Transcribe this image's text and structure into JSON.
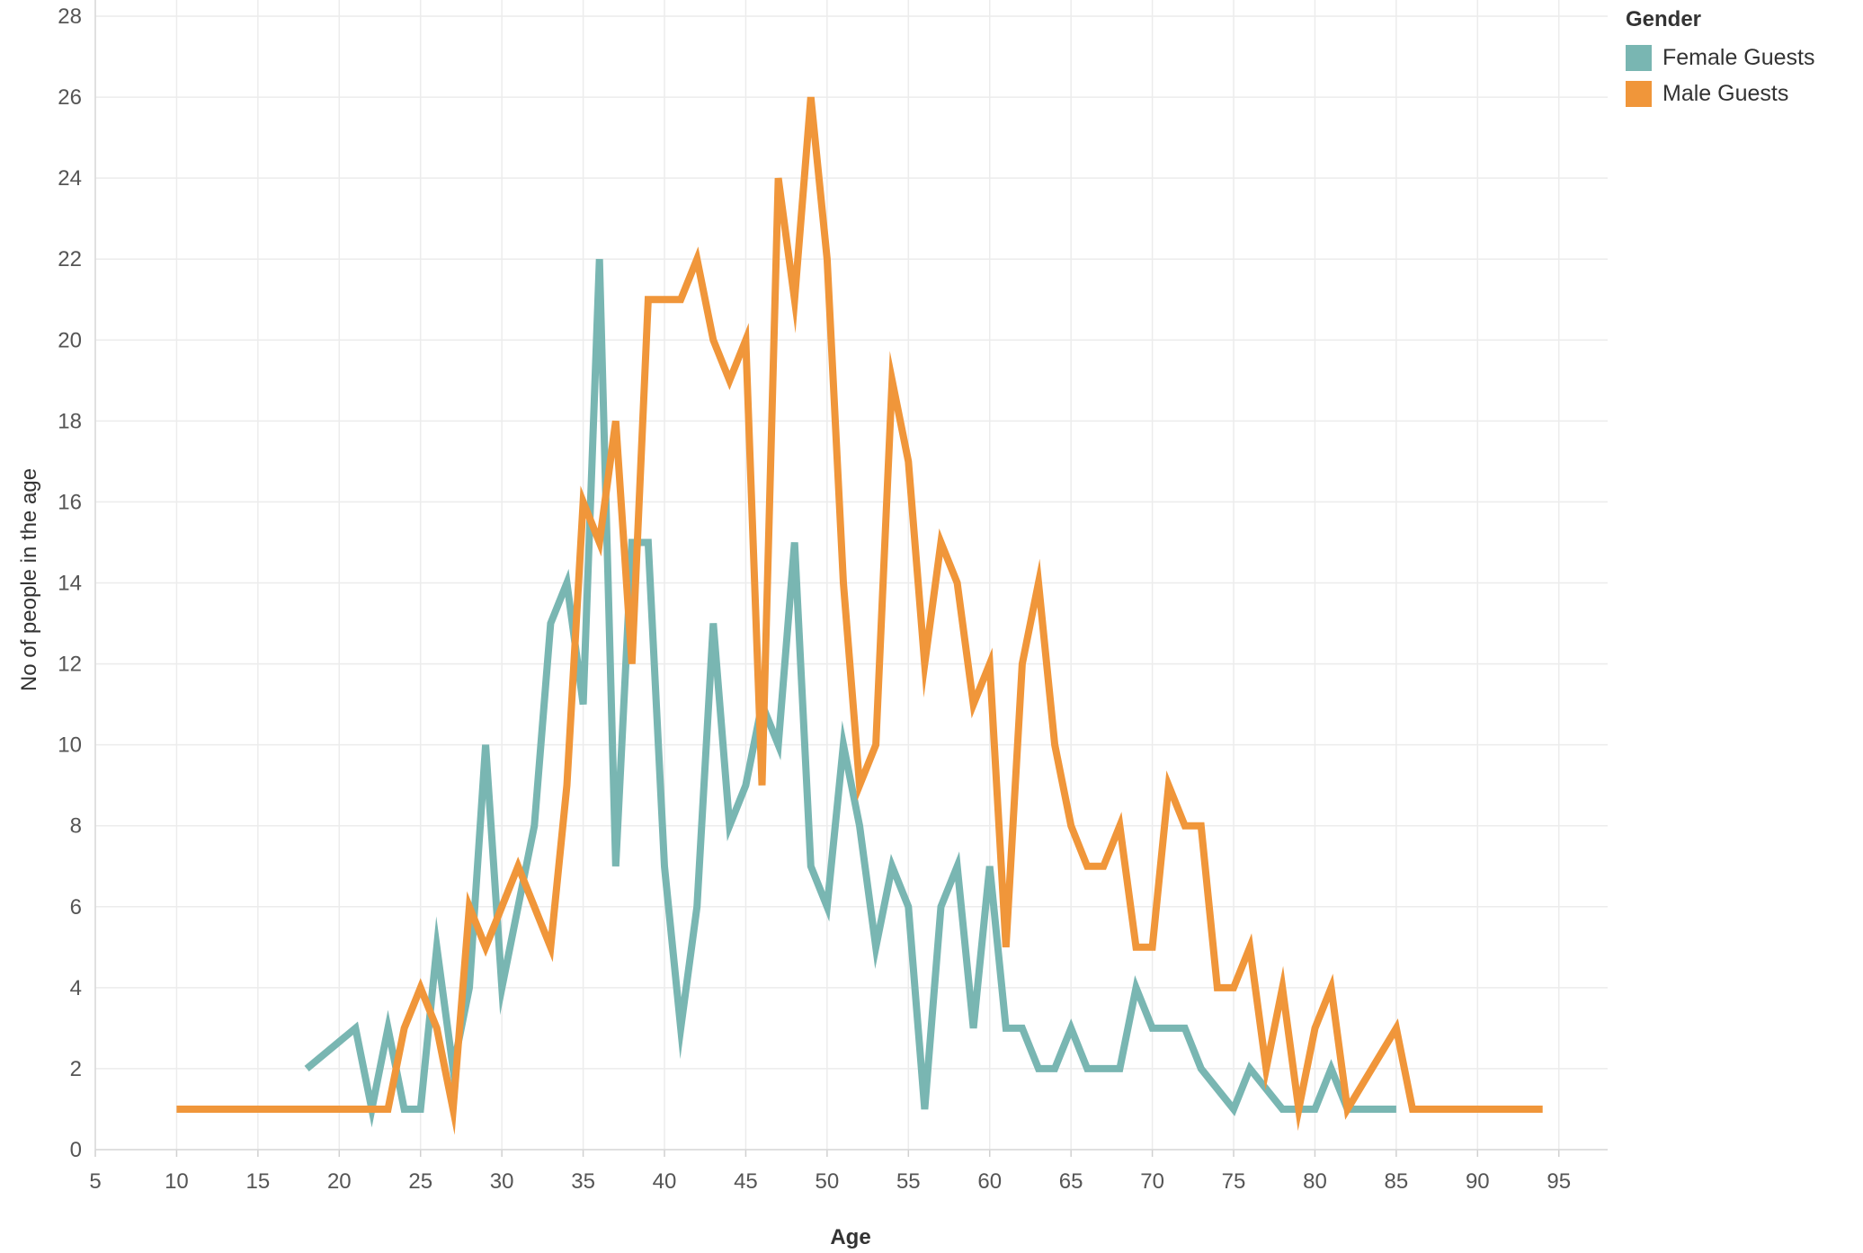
{
  "chart_data": {
    "type": "line",
    "title": "",
    "xlabel": "Age",
    "ylabel": "No of people in the age",
    "xlim": [
      5,
      98
    ],
    "ylim": [
      0,
      28
    ],
    "x_ticks": [
      5,
      10,
      15,
      20,
      25,
      30,
      35,
      40,
      45,
      50,
      55,
      60,
      65,
      70,
      75,
      80,
      85,
      90,
      95
    ],
    "y_ticks": [
      0,
      2,
      4,
      6,
      8,
      10,
      12,
      14,
      16,
      18,
      20,
      22,
      24,
      26,
      28
    ],
    "grid": true,
    "legend": {
      "title": "Gender",
      "placement": "top-right"
    },
    "series": [
      {
        "name": "Female Guests",
        "color": "#79b6b2",
        "x": [
          18,
          21,
          22,
          23,
          24,
          25,
          26,
          27,
          28,
          29,
          30,
          31,
          32,
          33,
          34,
          35,
          36,
          37,
          38,
          39,
          40,
          41,
          42,
          43,
          44,
          45,
          46,
          47,
          48,
          49,
          50,
          51,
          52,
          53,
          54,
          55,
          56,
          57,
          58,
          59,
          60,
          61,
          62,
          63,
          64,
          65,
          66,
          67,
          68,
          69,
          70,
          71,
          72,
          73,
          75,
          76,
          78,
          79,
          80,
          81,
          82,
          83,
          85
        ],
        "values": [
          2,
          3,
          1,
          3,
          1,
          1,
          5,
          2,
          4,
          10,
          4,
          6,
          8,
          13,
          14,
          11,
          22,
          7,
          15,
          15,
          7,
          3,
          6,
          13,
          8,
          9,
          11,
          10,
          15,
          7,
          6,
          10,
          8,
          5,
          7,
          6,
          1,
          6,
          7,
          3,
          7,
          3,
          3,
          2,
          2,
          3,
          2,
          2,
          2,
          4,
          3,
          3,
          3,
          2,
          1,
          2,
          1,
          1,
          1,
          2,
          1,
          1,
          1
        ]
      },
      {
        "name": "Male Guests",
        "color": "#f0963a",
        "x": [
          10,
          21,
          22,
          23,
          24,
          25,
          26,
          27,
          28,
          29,
          30,
          31,
          32,
          33,
          34,
          35,
          36,
          37,
          38,
          39,
          40,
          41,
          42,
          43,
          44,
          45,
          46,
          47,
          48,
          49,
          50,
          51,
          52,
          53,
          54,
          55,
          56,
          57,
          58,
          59,
          60,
          61,
          62,
          63,
          64,
          65,
          66,
          67,
          68,
          69,
          70,
          71,
          72,
          73,
          74,
          75,
          76,
          77,
          78,
          79,
          80,
          81,
          82,
          85,
          86,
          94
        ],
        "values": [
          1,
          1,
          1,
          1,
          3,
          4,
          3,
          1,
          6,
          5,
          6,
          7,
          6,
          5,
          9,
          16,
          15,
          18,
          12,
          21,
          21,
          21,
          22,
          20,
          19,
          20,
          9,
          24,
          21,
          26,
          22,
          14,
          9,
          10,
          19,
          17,
          12,
          15,
          14,
          11,
          12,
          5,
          12,
          14,
          10,
          8,
          7,
          7,
          8,
          5,
          5,
          9,
          8,
          8,
          4,
          4,
          5,
          2,
          4,
          1,
          3,
          4,
          1,
          3,
          1,
          1
        ]
      }
    ]
  }
}
